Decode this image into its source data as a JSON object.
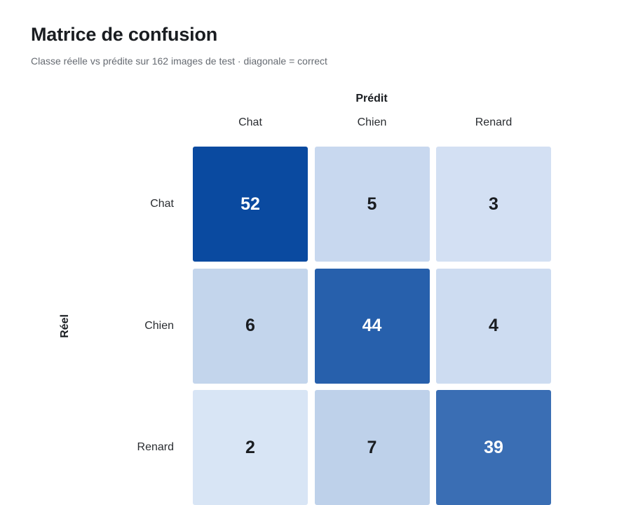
{
  "chart_data": {
    "type": "heatmap",
    "title": "Matrice de confusion",
    "subtitle": "Classe réelle vs prédite sur 162 images de test · diagonale = correct",
    "xlabel": "Prédit",
    "ylabel": "Réel",
    "x_categories": [
      "Chat",
      "Chien",
      "Renard"
    ],
    "y_categories": [
      "Chat",
      "Chien",
      "Renard"
    ],
    "values": [
      [
        52,
        5,
        3
      ],
      [
        6,
        44,
        4
      ],
      [
        2,
        7,
        39
      ]
    ],
    "color_scale": {
      "low": "#e6effb",
      "high": "#0a4aa0",
      "text_dark": "#1a1d21",
      "text_light": "#ffffff"
    }
  }
}
